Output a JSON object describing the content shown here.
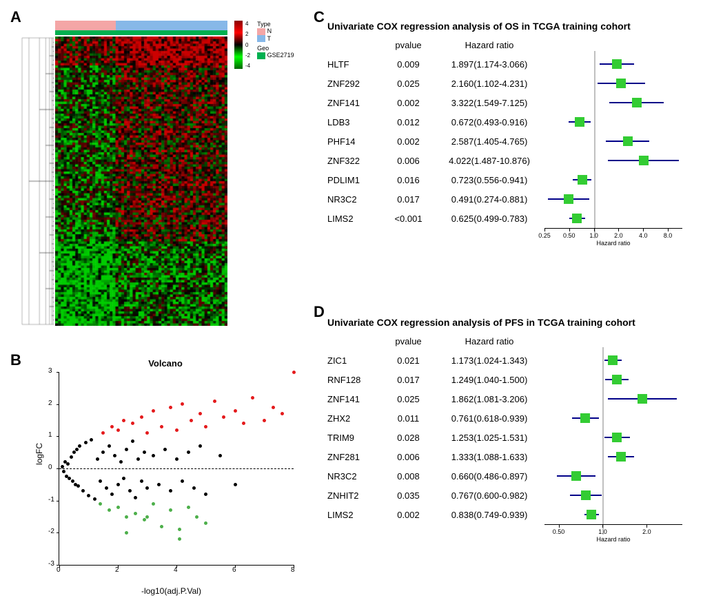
{
  "panelA": {
    "label": "A",
    "topbar": {
      "type_segments": [
        {
          "color": "#f4a6a6",
          "width": 0.35
        },
        {
          "color": "#87b8e8",
          "width": 0.65
        }
      ],
      "geo_color": "#00b050"
    },
    "legend": {
      "scale_title": "",
      "scale_colors": [
        "#8b0000",
        "#ff0000",
        "#000000",
        "#00ff00",
        "#006400"
      ],
      "scale_values": [
        "4",
        "2",
        "0",
        "-2",
        "-4"
      ],
      "type_title": "Type",
      "type_items": [
        {
          "label": "N",
          "color": "#f4a6a6"
        },
        {
          "label": "T",
          "color": "#87b8e8"
        }
      ],
      "geo_title": "Geo",
      "geo_items": [
        {
          "label": "GSE2719",
          "color": "#00b050"
        }
      ],
      "side_labels": [
        "Type",
        "Geo"
      ]
    },
    "heatmap": {
      "rows": 120,
      "cols": 60,
      "colors": {
        "high": "#cc0000",
        "mid": "#000000",
        "low": "#00cc00"
      }
    }
  },
  "panelB": {
    "label": "B",
    "title": "Volcano",
    "xlabel": "-log10(adj.P.Val)",
    "ylabel": "logFC",
    "xlim": [
      0,
      8
    ],
    "ylim": [
      -3,
      3
    ],
    "xticks": [
      0,
      2,
      4,
      6,
      8
    ],
    "yticks": [
      -3,
      -2,
      -1,
      0,
      1,
      2,
      3
    ],
    "colors": {
      "up": "#e41a1c",
      "down": "#4daf4a",
      "ns": "#000000"
    },
    "points": [
      {
        "x": 0.1,
        "y": 0.05,
        "c": "ns"
      },
      {
        "x": 0.15,
        "y": -0.1,
        "c": "ns"
      },
      {
        "x": 0.2,
        "y": 0.2,
        "c": "ns"
      },
      {
        "x": 0.25,
        "y": -0.25,
        "c": "ns"
      },
      {
        "x": 0.3,
        "y": 0.15,
        "c": "ns"
      },
      {
        "x": 0.35,
        "y": -0.3,
        "c": "ns"
      },
      {
        "x": 0.4,
        "y": 0.35,
        "c": "ns"
      },
      {
        "x": 0.45,
        "y": -0.4,
        "c": "ns"
      },
      {
        "x": 0.5,
        "y": 0.5,
        "c": "ns"
      },
      {
        "x": 0.55,
        "y": -0.5,
        "c": "ns"
      },
      {
        "x": 0.6,
        "y": 0.6,
        "c": "ns"
      },
      {
        "x": 0.65,
        "y": -0.55,
        "c": "ns"
      },
      {
        "x": 0.7,
        "y": 0.7,
        "c": "ns"
      },
      {
        "x": 0.8,
        "y": -0.7,
        "c": "ns"
      },
      {
        "x": 0.9,
        "y": 0.8,
        "c": "ns"
      },
      {
        "x": 1.0,
        "y": -0.85,
        "c": "ns"
      },
      {
        "x": 1.1,
        "y": 0.9,
        "c": "ns"
      },
      {
        "x": 1.2,
        "y": -0.95,
        "c": "ns"
      },
      {
        "x": 1.3,
        "y": 0.3,
        "c": "ns"
      },
      {
        "x": 1.4,
        "y": -0.4,
        "c": "ns"
      },
      {
        "x": 1.5,
        "y": 0.5,
        "c": "ns"
      },
      {
        "x": 1.6,
        "y": -0.6,
        "c": "ns"
      },
      {
        "x": 1.7,
        "y": 0.7,
        "c": "ns"
      },
      {
        "x": 1.8,
        "y": -0.8,
        "c": "ns"
      },
      {
        "x": 1.9,
        "y": 0.4,
        "c": "ns"
      },
      {
        "x": 2.0,
        "y": -0.5,
        "c": "ns"
      },
      {
        "x": 2.1,
        "y": 0.2,
        "c": "ns"
      },
      {
        "x": 2.2,
        "y": -0.3,
        "c": "ns"
      },
      {
        "x": 2.3,
        "y": 0.6,
        "c": "ns"
      },
      {
        "x": 2.4,
        "y": -0.7,
        "c": "ns"
      },
      {
        "x": 2.5,
        "y": 0.85,
        "c": "ns"
      },
      {
        "x": 2.6,
        "y": -0.9,
        "c": "ns"
      },
      {
        "x": 2.7,
        "y": 0.3,
        "c": "ns"
      },
      {
        "x": 2.8,
        "y": -0.4,
        "c": "ns"
      },
      {
        "x": 2.9,
        "y": 0.5,
        "c": "ns"
      },
      {
        "x": 3.0,
        "y": -0.6,
        "c": "ns"
      },
      {
        "x": 3.2,
        "y": 0.4,
        "c": "ns"
      },
      {
        "x": 3.4,
        "y": -0.5,
        "c": "ns"
      },
      {
        "x": 3.6,
        "y": 0.6,
        "c": "ns"
      },
      {
        "x": 3.8,
        "y": -0.7,
        "c": "ns"
      },
      {
        "x": 4.0,
        "y": 0.3,
        "c": "ns"
      },
      {
        "x": 4.2,
        "y": -0.4,
        "c": "ns"
      },
      {
        "x": 4.4,
        "y": 0.5,
        "c": "ns"
      },
      {
        "x": 4.6,
        "y": -0.6,
        "c": "ns"
      },
      {
        "x": 4.8,
        "y": 0.7,
        "c": "ns"
      },
      {
        "x": 5.0,
        "y": -0.8,
        "c": "ns"
      },
      {
        "x": 5.5,
        "y": 0.4,
        "c": "ns"
      },
      {
        "x": 6.0,
        "y": -0.5,
        "c": "ns"
      },
      {
        "x": 1.5,
        "y": 1.1,
        "c": "up"
      },
      {
        "x": 1.8,
        "y": 1.3,
        "c": "up"
      },
      {
        "x": 2.0,
        "y": 1.2,
        "c": "up"
      },
      {
        "x": 2.2,
        "y": 1.5,
        "c": "up"
      },
      {
        "x": 2.5,
        "y": 1.4,
        "c": "up"
      },
      {
        "x": 2.8,
        "y": 1.6,
        "c": "up"
      },
      {
        "x": 3.0,
        "y": 1.1,
        "c": "up"
      },
      {
        "x": 3.2,
        "y": 1.8,
        "c": "up"
      },
      {
        "x": 3.5,
        "y": 1.3,
        "c": "up"
      },
      {
        "x": 3.8,
        "y": 1.9,
        "c": "up"
      },
      {
        "x": 4.0,
        "y": 1.2,
        "c": "up"
      },
      {
        "x": 4.2,
        "y": 2.0,
        "c": "up"
      },
      {
        "x": 4.5,
        "y": 1.5,
        "c": "up"
      },
      {
        "x": 4.8,
        "y": 1.7,
        "c": "up"
      },
      {
        "x": 5.0,
        "y": 1.3,
        "c": "up"
      },
      {
        "x": 5.3,
        "y": 2.1,
        "c": "up"
      },
      {
        "x": 5.6,
        "y": 1.6,
        "c": "up"
      },
      {
        "x": 6.0,
        "y": 1.8,
        "c": "up"
      },
      {
        "x": 6.3,
        "y": 1.4,
        "c": "up"
      },
      {
        "x": 6.6,
        "y": 2.2,
        "c": "up"
      },
      {
        "x": 7.0,
        "y": 1.5,
        "c": "up"
      },
      {
        "x": 7.3,
        "y": 1.9,
        "c": "up"
      },
      {
        "x": 7.6,
        "y": 1.7,
        "c": "up"
      },
      {
        "x": 8.0,
        "y": 3.0,
        "c": "up"
      },
      {
        "x": 1.4,
        "y": -1.1,
        "c": "down"
      },
      {
        "x": 1.7,
        "y": -1.3,
        "c": "down"
      },
      {
        "x": 2.0,
        "y": -1.2,
        "c": "down"
      },
      {
        "x": 2.3,
        "y": -1.5,
        "c": "down"
      },
      {
        "x": 2.6,
        "y": -1.4,
        "c": "down"
      },
      {
        "x": 2.9,
        "y": -1.6,
        "c": "down"
      },
      {
        "x": 3.2,
        "y": -1.1,
        "c": "down"
      },
      {
        "x": 3.5,
        "y": -1.8,
        "c": "down"
      },
      {
        "x": 3.8,
        "y": -1.3,
        "c": "down"
      },
      {
        "x": 4.1,
        "y": -1.9,
        "c": "down"
      },
      {
        "x": 4.4,
        "y": -1.2,
        "c": "down"
      },
      {
        "x": 4.1,
        "y": -2.2,
        "c": "down"
      },
      {
        "x": 4.7,
        "y": -1.5,
        "c": "down"
      },
      {
        "x": 5.0,
        "y": -1.7,
        "c": "down"
      },
      {
        "x": 2.3,
        "y": -2.0,
        "c": "down"
      },
      {
        "x": 3.0,
        "y": -1.5,
        "c": "down"
      }
    ]
  },
  "panelC": {
    "label": "C",
    "title": "Univariate COX regression analysis of OS in TCGA training cohort",
    "headers": {
      "pvalue": "pvalue",
      "hr": "Hazard ratio"
    },
    "axis_title": "Hazard ratio",
    "axis_ticks": [
      0.25,
      0.5,
      1.0,
      2.0,
      4.0,
      8.0
    ],
    "axis_range": [
      0.25,
      12.0
    ],
    "ref": 1.0,
    "box_color": "#33cc33",
    "line_color": "#000088",
    "rows": [
      {
        "gene": "HLTF",
        "pvalue": "0.009",
        "hr": "1.897(1.174-3.066)",
        "point": 1.897,
        "lo": 1.174,
        "hi": 3.066
      },
      {
        "gene": "ZNF292",
        "pvalue": "0.025",
        "hr": "2.160(1.102-4.231)",
        "point": 2.16,
        "lo": 1.102,
        "hi": 4.231
      },
      {
        "gene": "ZNF141",
        "pvalue": "0.002",
        "hr": "3.322(1.549-7.125)",
        "point": 3.322,
        "lo": 1.549,
        "hi": 7.125
      },
      {
        "gene": "LDB3",
        "pvalue": "0.012",
        "hr": "0.672(0.493-0.916)",
        "point": 0.672,
        "lo": 0.493,
        "hi": 0.916
      },
      {
        "gene": "PHF14",
        "pvalue": "0.002",
        "hr": "2.587(1.405-4.765)",
        "point": 2.587,
        "lo": 1.405,
        "hi": 4.765
      },
      {
        "gene": "ZNF322",
        "pvalue": "0.006",
        "hr": "4.022(1.487-10.876)",
        "point": 4.022,
        "lo": 1.487,
        "hi": 10.876
      },
      {
        "gene": "PDLIM1",
        "pvalue": "0.016",
        "hr": "0.723(0.556-0.941)",
        "point": 0.723,
        "lo": 0.556,
        "hi": 0.941
      },
      {
        "gene": "NR3C2",
        "pvalue": "0.017",
        "hr": "0.491(0.274-0.881)",
        "point": 0.491,
        "lo": 0.274,
        "hi": 0.881
      },
      {
        "gene": "LIMS2",
        "pvalue": "<0.001",
        "hr": "0.625(0.499-0.783)",
        "point": 0.625,
        "lo": 0.499,
        "hi": 0.783
      }
    ]
  },
  "panelD": {
    "label": "D",
    "title": "Univariate COX regression analysis of PFS in TCGA training cohort",
    "headers": {
      "pvalue": "pvalue",
      "hr": "Hazard ratio"
    },
    "axis_title": "Hazard ratio",
    "axis_ticks": [
      0.5,
      1.0,
      2.0
    ],
    "axis_range": [
      0.4,
      3.5
    ],
    "ref": 1.0,
    "box_color": "#33cc33",
    "line_color": "#000088",
    "rows": [
      {
        "gene": "ZIC1",
        "pvalue": "0.021",
        "hr": "1.173(1.024-1.343)",
        "point": 1.173,
        "lo": 1.024,
        "hi": 1.343
      },
      {
        "gene": "RNF128",
        "pvalue": "0.017",
        "hr": "1.249(1.040-1.500)",
        "point": 1.249,
        "lo": 1.04,
        "hi": 1.5
      },
      {
        "gene": "ZNF141",
        "pvalue": "0.025",
        "hr": "1.862(1.081-3.206)",
        "point": 1.862,
        "lo": 1.081,
        "hi": 3.206
      },
      {
        "gene": "ZHX2",
        "pvalue": "0.011",
        "hr": "0.761(0.618-0.939)",
        "point": 0.761,
        "lo": 0.618,
        "hi": 0.939
      },
      {
        "gene": "TRIM9",
        "pvalue": "0.028",
        "hr": "1.253(1.025-1.531)",
        "point": 1.253,
        "lo": 1.025,
        "hi": 1.531
      },
      {
        "gene": "ZNF281",
        "pvalue": "0.006",
        "hr": "1.333(1.088-1.633)",
        "point": 1.333,
        "lo": 1.088,
        "hi": 1.633
      },
      {
        "gene": "NR3C2",
        "pvalue": "0.008",
        "hr": "0.660(0.486-0.897)",
        "point": 0.66,
        "lo": 0.486,
        "hi": 0.897
      },
      {
        "gene": "ZNHIT2",
        "pvalue": "0.035",
        "hr": "0.767(0.600-0.982)",
        "point": 0.767,
        "lo": 0.6,
        "hi": 0.982
      },
      {
        "gene": "LIMS2",
        "pvalue": "0.002",
        "hr": "0.838(0.749-0.939)",
        "point": 0.838,
        "lo": 0.749,
        "hi": 0.939
      }
    ]
  }
}
